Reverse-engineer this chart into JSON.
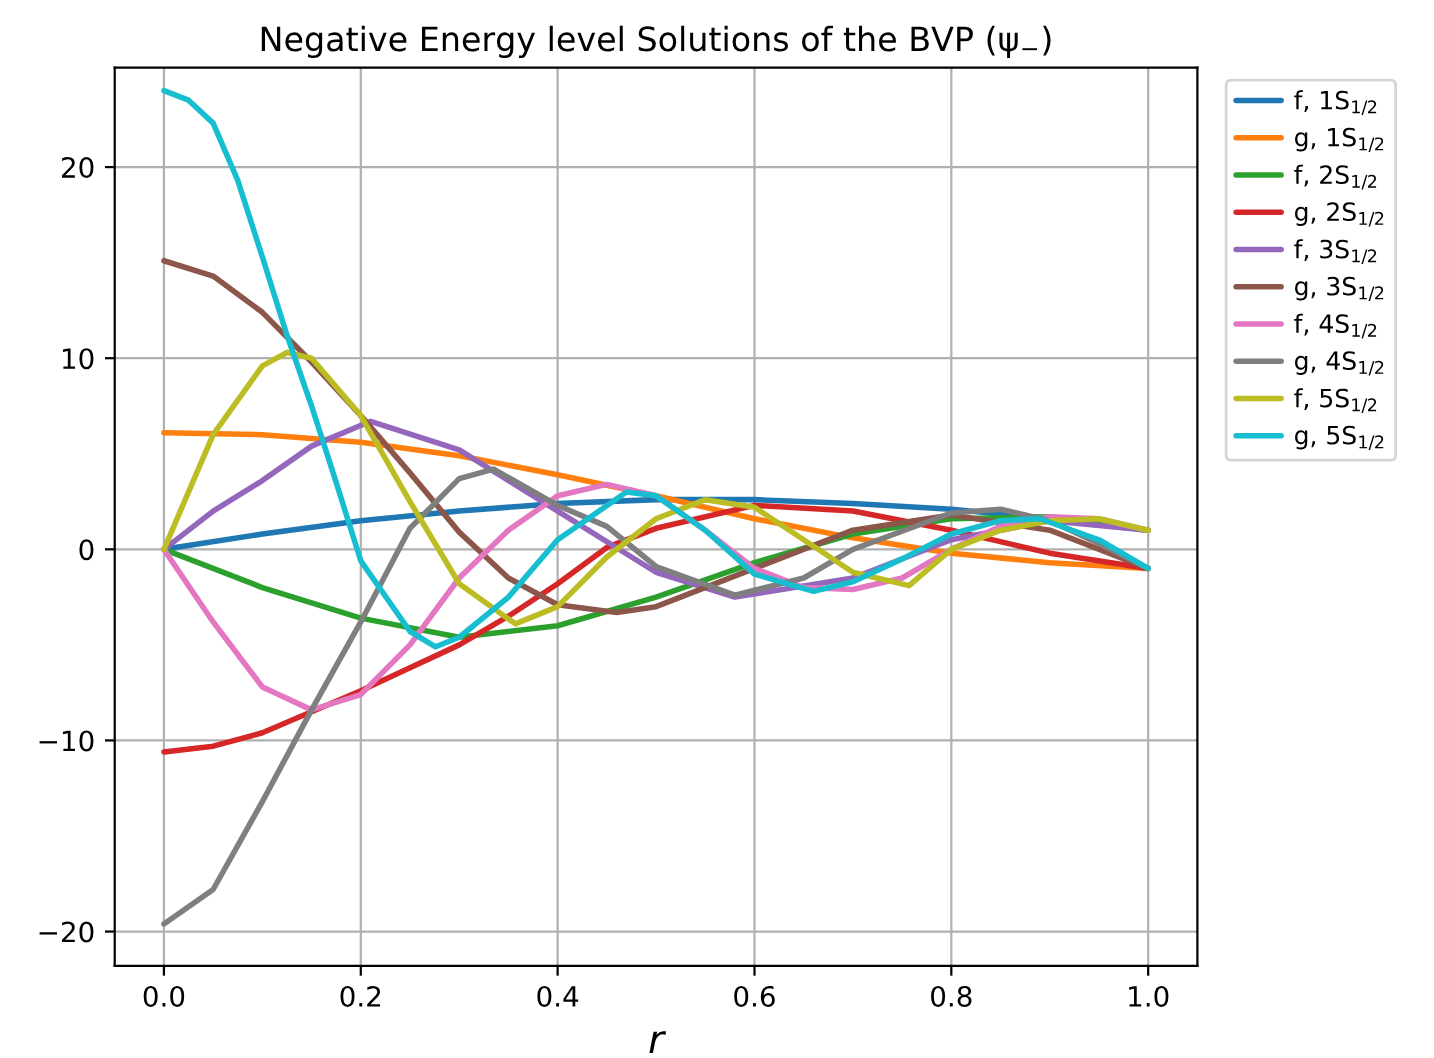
{
  "chart_data": {
    "type": "line",
    "title": "Negative Energy level Solutions of the BVP (ψ$_{−}$)",
    "xlabel": "r",
    "xlim": [
      -0.05,
      1.05
    ],
    "ylim": [
      -21.8,
      25.2
    ],
    "xticks": [
      {
        "value": 0,
        "label": "0.0"
      },
      {
        "value": 0.2,
        "label": "0.2"
      },
      {
        "value": 0.4,
        "label": "0.4"
      },
      {
        "value": 0.6,
        "label": "0.6"
      },
      {
        "value": 0.8,
        "label": "0.8"
      },
      {
        "value": 1,
        "label": "1.0"
      }
    ],
    "yticks": [
      {
        "value": -20,
        "label": "−20"
      },
      {
        "value": -10,
        "label": "−10"
      },
      0,
      10,
      20
    ],
    "grid": true,
    "legend": "top right",
    "line_style": "solid",
    "marker": "none",
    "series": [
      {
        "name": "f, 1S$_{1/2}$",
        "color": "#1f77b4",
        "x": [
          0,
          0.1,
          0.2,
          0.3,
          0.4,
          0.5,
          0.6,
          0.7,
          0.8,
          0.9,
          1.0
        ],
        "values": [
          0,
          0.8,
          1.5,
          2.0,
          2.4,
          2.6,
          2.6,
          2.4,
          2.1,
          1.6,
          1.0
        ]
      },
      {
        "name": "g, 1S$_{1/2}$",
        "color": "#ff7f0e",
        "x": [
          0,
          0.1,
          0.2,
          0.3,
          0.4,
          0.5,
          0.6,
          0.7,
          0.8,
          0.9,
          1.0
        ],
        "values": [
          6.1,
          6.0,
          5.6,
          4.9,
          3.9,
          2.8,
          1.6,
          0.6,
          -0.2,
          -0.7,
          -1.0
        ]
      },
      {
        "name": "f, 2S$_{1/2}$",
        "color": "#2ca02c",
        "x": [
          0,
          0.1,
          0.2,
          0.3,
          0.4,
          0.5,
          0.6,
          0.7,
          0.8,
          0.9,
          1.0
        ],
        "values": [
          0,
          -2.0,
          -3.6,
          -4.6,
          -4.0,
          -2.5,
          -0.7,
          0.8,
          1.6,
          1.7,
          1.0
        ]
      },
      {
        "name": "g, 2S$_{1/2}$",
        "color": "#d62728",
        "x": [
          0,
          0.05,
          0.1,
          0.15,
          0.2,
          0.25,
          0.3,
          0.35,
          0.4,
          0.45,
          0.5,
          0.6,
          0.7,
          0.8,
          0.9,
          1.0
        ],
        "values": [
          -10.6,
          -10.3,
          -9.6,
          -8.5,
          -7.4,
          -6.2,
          -5.0,
          -3.5,
          -1.8,
          0.1,
          1.1,
          2.3,
          2.0,
          1.0,
          -0.2,
          -1.0
        ]
      },
      {
        "name": "f, 3S$_{1/2}$",
        "color": "#9467bd",
        "x": [
          0,
          0.05,
          0.1,
          0.15,
          0.21,
          0.3,
          0.4,
          0.5,
          0.58,
          0.7,
          0.8,
          0.9,
          1.0
        ],
        "values": [
          0,
          2.0,
          3.6,
          5.4,
          6.7,
          5.2,
          2.0,
          -1.2,
          -2.5,
          -1.5,
          0.5,
          1.5,
          1.0
        ]
      },
      {
        "name": "g, 3S$_{1/2}$",
        "color": "#8c564b",
        "x": [
          0,
          0.05,
          0.1,
          0.15,
          0.2,
          0.25,
          0.3,
          0.35,
          0.4,
          0.46,
          0.5,
          0.6,
          0.7,
          0.8,
          0.9,
          1.0
        ],
        "values": [
          15.1,
          14.3,
          12.4,
          9.8,
          7.0,
          4.0,
          0.9,
          -1.5,
          -2.9,
          -3.3,
          -3.0,
          -1.0,
          1.0,
          1.8,
          1.0,
          -1.0
        ]
      },
      {
        "name": "f, 4S$_{1/2}$",
        "color": "#e377c2",
        "x": [
          0,
          0.05,
          0.1,
          0.15,
          0.2,
          0.25,
          0.3,
          0.35,
          0.4,
          0.45,
          0.5,
          0.55,
          0.6,
          0.65,
          0.7,
          0.75,
          0.8,
          0.85,
          0.9,
          0.95,
          1.0
        ],
        "values": [
          0,
          -3.8,
          -7.2,
          -8.4,
          -7.6,
          -5.0,
          -1.5,
          1.0,
          2.8,
          3.4,
          2.8,
          1.0,
          -1.0,
          -2.0,
          -2.1,
          -1.5,
          0.0,
          1.2,
          1.7,
          1.6,
          1.0
        ]
      },
      {
        "name": "g, 4S$_{1/2}$",
        "color": "#7f7f7f",
        "x": [
          0,
          0.05,
          0.1,
          0.15,
          0.2,
          0.25,
          0.3,
          0.335,
          0.4,
          0.45,
          0.5,
          0.58,
          0.65,
          0.7,
          0.8,
          0.85,
          0.9,
          0.95,
          1.0
        ],
        "values": [
          -19.6,
          -17.8,
          -13.2,
          -8.4,
          -3.8,
          1.1,
          3.7,
          4.2,
          2.3,
          1.2,
          -0.9,
          -2.4,
          -1.5,
          0.0,
          1.9,
          2.1,
          1.5,
          0.3,
          -1.0
        ]
      },
      {
        "name": "f, 5S$_{1/2}$",
        "color": "#bcbd22",
        "x": [
          0,
          0.05,
          0.1,
          0.125,
          0.15,
          0.2,
          0.25,
          0.3,
          0.357,
          0.4,
          0.45,
          0.5,
          0.55,
          0.6,
          0.65,
          0.7,
          0.757,
          0.8,
          0.85,
          0.9,
          0.95,
          1.0
        ],
        "values": [
          0,
          6.0,
          9.6,
          10.3,
          10.0,
          7.0,
          2.5,
          -1.8,
          -3.9,
          -3.0,
          -0.4,
          1.6,
          2.6,
          2.2,
          0.5,
          -1.2,
          -1.9,
          0.0,
          1.0,
          1.5,
          1.6,
          1.0
        ]
      },
      {
        "name": "g, 5S$_{1/2}$",
        "color": "#17becf",
        "x": [
          0,
          0.025,
          0.05,
          0.075,
          0.1,
          0.125,
          0.15,
          0.175,
          0.2,
          0.25,
          0.276,
          0.3,
          0.35,
          0.4,
          0.47,
          0.5,
          0.55,
          0.6,
          0.66,
          0.7,
          0.75,
          0.8,
          0.85,
          0.89,
          0.95,
          1.0
        ],
        "values": [
          24.0,
          23.5,
          22.3,
          19.3,
          15.3,
          11.2,
          7.5,
          3.5,
          -0.6,
          -4.3,
          -5.1,
          -4.6,
          -2.5,
          0.5,
          3.0,
          2.8,
          1.0,
          -1.3,
          -2.2,
          -1.7,
          -0.5,
          0.8,
          1.5,
          1.6,
          0.5,
          -1.0
        ]
      }
    ]
  }
}
